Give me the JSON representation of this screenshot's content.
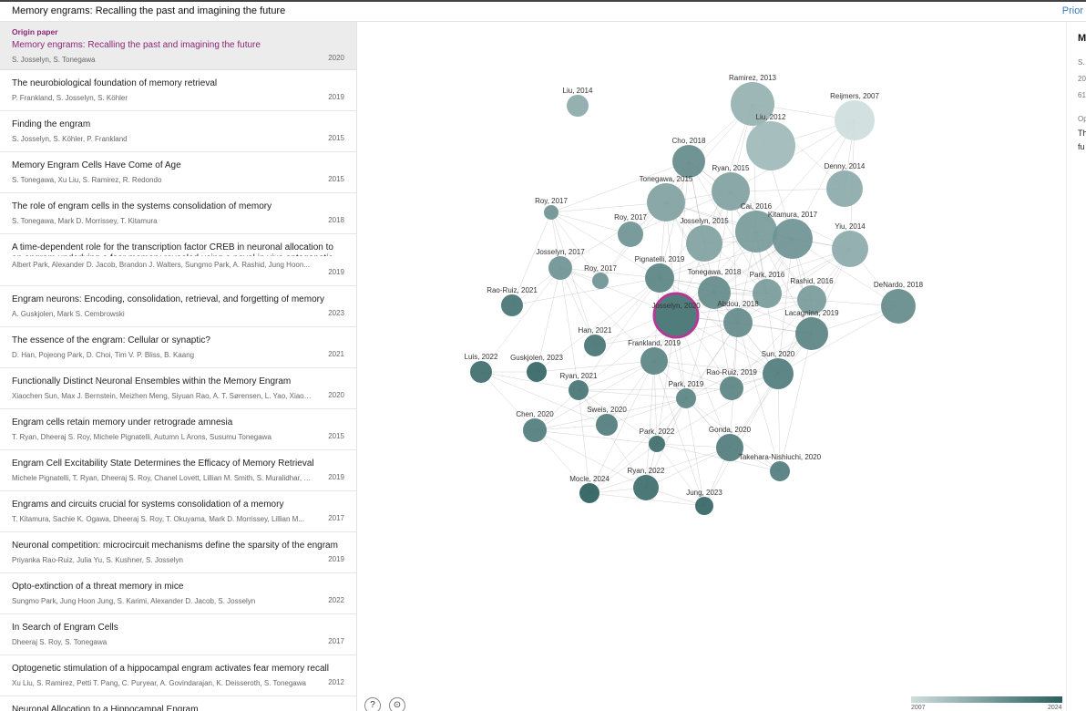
{
  "window": {
    "title": "Memory engrams: Recalling the past and imagining the future",
    "top_right_link": "Prior"
  },
  "origin": {
    "label": "Origin paper",
    "title": "Memory engrams: Recalling the past and imagining the future",
    "authors": "S. Josselyn, S. Tonegawa",
    "year": "2020"
  },
  "papers": [
    {
      "title": "The neurobiological foundation of memory retrieval",
      "authors": "P. Frankland, S. Josselyn, S. Köhler",
      "year": "2019"
    },
    {
      "title": "Finding the engram",
      "authors": "S. Josselyn, S. Köhler, P. Frankland",
      "year": "2015"
    },
    {
      "title": "Memory Engram Cells Have Come of Age",
      "authors": "S. Tonegawa, Xu Liu, S. Ramirez, R. Redondo",
      "year": "2015"
    },
    {
      "title": "The role of engram cells in the systems consolidation of memory",
      "authors": "S. Tonegawa, Mark D. Morrissey, T. Kitamura",
      "year": "2018"
    },
    {
      "title": "A time-dependent role for the transcription factor CREB in neuronal allocation to an engram underlying a fear memory revealed using a novel in vivo optogenetic tool to...",
      "authors": "Albert Park, Alexander D. Jacob, Brandon J. Walters, Sungmo Park, A. Rashid, Jung Hoon...",
      "year": "2019",
      "tall": true
    },
    {
      "title": "Engram neurons: Encoding, consolidation, retrieval, and forgetting of memory",
      "authors": "A. Guskjolen, Mark S. Cembrowski",
      "year": "2023"
    },
    {
      "title": "The essence of the engram: Cellular or synaptic?",
      "authors": "D. Han, Pojeong Park, D. Choi, Tim V. P. Bliss, B. Kaang",
      "year": "2021"
    },
    {
      "title": "Functionally Distinct Neuronal Ensembles within the Memory Engram",
      "authors": "Xiaochen Sun, Max J. Bernstein, Meizhen Meng, Siyuan Rao, A. T. Sørensen, L. Yao, Xiaohu...",
      "year": "2020"
    },
    {
      "title": "Engram cells retain memory under retrograde amnesia",
      "authors": "T. Ryan, Dheeraj S. Roy, Michele Pignatelli, Autumn L Arons, Susumu Tonegawa",
      "year": "2015"
    },
    {
      "title": "Engram Cell Excitability State Determines the Efficacy of Memory Retrieval",
      "authors": "Michele Pignatelli, T. Ryan, Dheeraj S. Roy, Chanel Lovett, Lillian M. Smith, S. Muralidhar, S...",
      "year": "2019"
    },
    {
      "title": "Engrams and circuits crucial for systems consolidation of a memory",
      "authors": "T. Kitamura, Sachie K. Ogawa, Dheeraj S. Roy, T. Okuyama, Mark D. Morrissey, Lillian M...",
      "year": "2017"
    },
    {
      "title": "Neuronal competition: microcircuit mechanisms define the sparsity of the engram",
      "authors": "Priyanka Rao-Ruiz, Julia Yu, S. Kushner, S. Josselyn",
      "year": "2019"
    },
    {
      "title": "Opto-extinction of a threat memory in mice",
      "authors": "Sungmo Park, Jung Hoon Jung, S. Karimi, Alexander D. Jacob, S. Josselyn",
      "year": "2022"
    },
    {
      "title": "In Search of Engram Cells",
      "authors": "Dheeraj S. Roy, S. Tonegawa",
      "year": "2017"
    },
    {
      "title": "Optogenetic stimulation of a hippocampal engram activates fear memory recall",
      "authors": "Xu Liu, S. Ramirez, Petti T. Pang, C. Puryear, A. Govindarajan, K. Deisseroth, S. Tonegawa",
      "year": "2012"
    },
    {
      "title": "Neuronal Allocation to a Hippocampal Engram",
      "authors": "",
      "year": ""
    }
  ],
  "graph": {
    "origin_label": "Josselyn, 2020",
    "nodes": [
      {
        "label": "Liu, 2014",
        "year": 2014
      },
      {
        "label": "Ramirez, 2013",
        "year": 2013
      },
      {
        "label": "Reijmers, 2007",
        "year": 2007
      },
      {
        "label": "Liu, 2012",
        "year": 2012
      },
      {
        "label": "Cho, 2018",
        "year": 2018
      },
      {
        "label": "Ryan, 2015",
        "year": 2015
      },
      {
        "label": "Denny, 2014",
        "year": 2014
      },
      {
        "label": "Tonegawa, 2015",
        "year": 2015
      },
      {
        "label": "Roy, 2017",
        "year": 2017
      },
      {
        "label": "Roy, 2017",
        "year": 2017
      },
      {
        "label": "Cai, 2016",
        "year": 2016
      },
      {
        "label": "Kitamura, 2017",
        "year": 2017
      },
      {
        "label": "Josselyn, 2015",
        "year": 2015
      },
      {
        "label": "Yiu, 2014",
        "year": 2014
      },
      {
        "label": "Josselyn, 2017",
        "year": 2017
      },
      {
        "label": "Roy, 2017",
        "year": 2017
      },
      {
        "label": "Pignatelli, 2019",
        "year": 2019
      },
      {
        "label": "Tonegawa, 2018",
        "year": 2018
      },
      {
        "label": "Park, 2016",
        "year": 2016
      },
      {
        "label": "Rashid, 2016",
        "year": 2016
      },
      {
        "label": "DeNardo, 2018",
        "year": 2018
      },
      {
        "label": "Rao-Ruiz, 2021",
        "year": 2021
      },
      {
        "label": "Abdou, 2018",
        "year": 2018
      },
      {
        "label": "Lacagnina, 2019",
        "year": 2019
      },
      {
        "label": "Han, 2021",
        "year": 2021
      },
      {
        "label": "Frankland, 2019",
        "year": 2019
      },
      {
        "label": "Luis, 2022",
        "year": 2022
      },
      {
        "label": "Guskjolen, 2023",
        "year": 2023
      },
      {
        "label": "Sun, 2020",
        "year": 2020
      },
      {
        "label": "Ryan, 2021",
        "year": 2021
      },
      {
        "label": "Rao-Ruiz, 2019",
        "year": 2019
      },
      {
        "label": "Park, 2019",
        "year": 2019
      },
      {
        "label": "Chen, 2020",
        "year": 2020
      },
      {
        "label": "Sweis, 2020",
        "year": 2020
      },
      {
        "label": "Park, 2022",
        "year": 2022
      },
      {
        "label": "Gonda, 2020",
        "year": 2020
      },
      {
        "label": "Takehara-Nishiuchi, 2020",
        "year": 2020
      },
      {
        "label": "Mocle, 2024",
        "year": 2024
      },
      {
        "label": "Ryan, 2022",
        "year": 2022
      },
      {
        "label": "Jung, 2023",
        "year": 2023
      }
    ],
    "colors": {
      "old": "#cfdddd",
      "new": "#2a5e5e",
      "origin_ring": "#b23a96",
      "edge": "#9a9a9a"
    }
  },
  "legend": {
    "min": "2007",
    "max": "2024"
  },
  "controls": {
    "help_label": "?",
    "center_label": "⊙"
  },
  "detail": {
    "title": "M",
    "meta_1": "S.",
    "meta_2": "20",
    "meta_3": "61",
    "section": "Op",
    "abstract": "Th al ha in m th w re be m Pl ce su ex ar er Af lo au fo cc er m ex er st m al fu hi (a of us di Fi al th m re (n st ot sy al"
  }
}
